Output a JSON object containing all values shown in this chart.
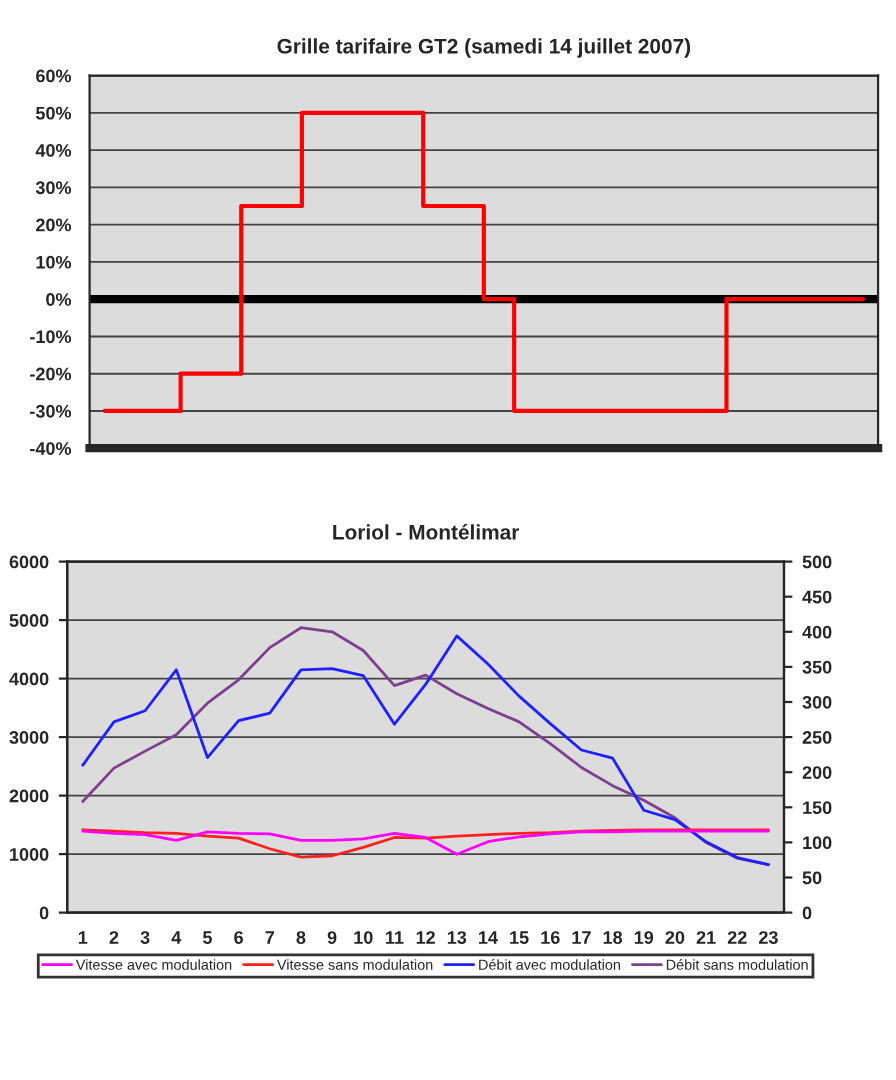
{
  "chart_data": [
    {
      "type": "step",
      "title": "Grille tarifaire GT2 (samedi 14 juillet 2007)",
      "categories": [
        null,
        null,
        null,
        null,
        null,
        null,
        null,
        null,
        null,
        null,
        null,
        null,
        null,
        null,
        null,
        null,
        null,
        null,
        null,
        null,
        null,
        null,
        null,
        null,
        null,
        null
      ],
      "series": [
        {
          "color": "#ff0000",
          "values": [
            -30,
            -30,
            -30,
            -20,
            -20,
            25,
            25,
            50,
            50,
            50,
            50,
            25,
            25,
            0,
            -30,
            -30,
            -30,
            -30,
            -30,
            -30,
            -30,
            0,
            0,
            0,
            0,
            0
          ]
        }
      ],
      "ylim": [
        -40,
        60
      ],
      "yticks": [
        {
          "value": -40,
          "label": "-40%"
        },
        {
          "value": -30,
          "label": "-30%"
        },
        {
          "value": -20,
          "label": "-20%"
        },
        {
          "value": -10,
          "label": "-10%"
        },
        {
          "value": 0,
          "label": "0%"
        },
        {
          "value": 10,
          "label": "10%"
        },
        {
          "value": 20,
          "label": "20%"
        },
        {
          "value": 30,
          "label": "30%"
        },
        {
          "value": 40,
          "label": "40%"
        },
        {
          "value": 50,
          "label": "50%"
        },
        {
          "value": 60,
          "label": "60%"
        }
      ],
      "grid": "y",
      "ref_lines": [
        {
          "axis": "y",
          "value": 0,
          "color": "#000000"
        }
      ]
    },
    {
      "type": "line",
      "title": "Loriol - Montélimar",
      "categories": [
        "1",
        "2",
        "3",
        "4",
        "5",
        "6",
        "7",
        "8",
        "9",
        "10",
        "11",
        "12",
        "13",
        "14",
        "15",
        "16",
        "17",
        "18",
        "19",
        "20",
        "21",
        "22",
        "23"
      ],
      "series": [
        {
          "name": "Vitesse avec modulation",
          "color": "#ff00ff",
          "axis": "y2",
          "values": [
            116,
            113,
            111,
            103,
            115,
            113,
            112,
            103,
            103,
            105,
            113,
            107,
            83,
            101,
            108,
            112,
            115,
            115,
            116,
            116,
            116,
            116,
            116
          ]
        },
        {
          "name": "Vitesse sans modulation",
          "color": "#ff2020",
          "axis": "y2",
          "values": [
            118,
            116,
            114,
            113,
            109,
            106,
            91,
            79,
            81,
            93,
            107,
            106,
            109,
            111,
            113,
            114,
            116,
            117,
            118,
            118,
            118,
            118,
            118
          ]
        },
        {
          "name": "Débit avec modulation",
          "color": "#2020ff",
          "values": [
            2520,
            3260,
            3450,
            4150,
            2650,
            3280,
            3410,
            4150,
            4170,
            4050,
            3220,
            3900,
            4730,
            4250,
            3700,
            3230,
            2780,
            2640,
            1750,
            1590,
            1210,
            940,
            820
          ]
        },
        {
          "name": "Débit sans modulation",
          "color": "#7f3f8f",
          "values": [
            1900,
            2470,
            2760,
            3040,
            3580,
            3980,
            4530,
            4870,
            4800,
            4480,
            3880,
            4060,
            3740,
            3490,
            3260,
            2890,
            2480,
            2170,
            1920,
            1620,
            1200,
            930,
            820
          ]
        }
      ],
      "ylim": [
        0,
        6000
      ],
      "yticks": [
        0,
        1000,
        2000,
        3000,
        4000,
        5000,
        6000
      ],
      "y2lim": [
        0,
        500
      ],
      "y2ticks": [
        0,
        50,
        100,
        150,
        200,
        250,
        300,
        350,
        400,
        450,
        500
      ],
      "grid": "y",
      "legend": "bottom"
    }
  ]
}
